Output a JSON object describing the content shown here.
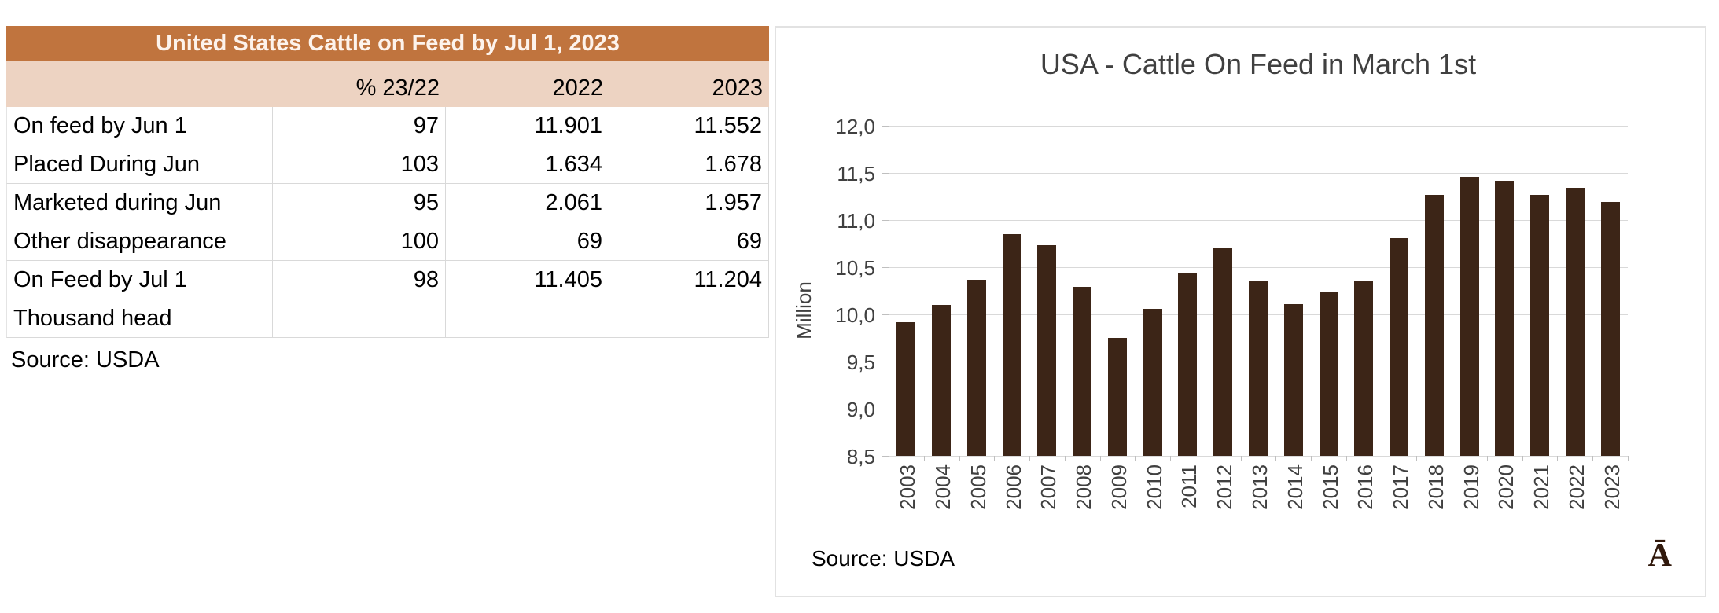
{
  "table": {
    "title": "United States Cattle on Feed by Jul 1, 2023",
    "columns": [
      "",
      "% 23/22",
      "2022",
      "2023"
    ],
    "rows": [
      {
        "label": "On feed by Jun 1",
        "pct": "97",
        "y2022": "11.901",
        "y2023": "11.552"
      },
      {
        "label": "Placed During Jun",
        "pct": "103",
        "y2022": "1.634",
        "y2023": "1.678"
      },
      {
        "label": "Marketed during Jun",
        "pct": "95",
        "y2022": "2.061",
        "y2023": "1.957"
      },
      {
        "label": "Other disappearance",
        "pct": "100",
        "y2022": "69",
        "y2023": "69"
      },
      {
        "label": "On Feed by Jul 1",
        "pct": "98",
        "y2022": "11.405",
        "y2023": "11.204"
      },
      {
        "label": "Thousand head",
        "pct": "",
        "y2022": "",
        "y2023": ""
      }
    ],
    "source": "Source: USDA",
    "colors": {
      "title_bg": "#c0743e",
      "title_text": "#fdf3ec",
      "header_bg": "#edd3c2",
      "cell_border": "#d9d9d9"
    }
  },
  "chart": {
    "title": "USA - Cattle On Feed in March 1st",
    "source": "Source: USDA",
    "corner_glyph": "Ā",
    "colors": {
      "bar": "#3c2517",
      "grid": "#d9d9d9",
      "axis": "#bfbfbf",
      "text": "#404040"
    }
  },
  "chart_data": {
    "type": "bar",
    "title": "USA - Cattle On Feed in March 1st",
    "xlabel": "",
    "ylabel": "Million",
    "categories": [
      "2003",
      "2004",
      "2005",
      "2006",
      "2007",
      "2008",
      "2009",
      "2010",
      "2011",
      "2012",
      "2013",
      "2014",
      "2015",
      "2016",
      "2017",
      "2018",
      "2019",
      "2020",
      "2021",
      "2022",
      "2023"
    ],
    "values": [
      9.92,
      10.1,
      10.37,
      10.85,
      10.73,
      10.29,
      9.75,
      10.06,
      10.44,
      10.71,
      10.35,
      10.11,
      10.23,
      10.35,
      10.81,
      11.27,
      11.46,
      11.42,
      11.27,
      11.34,
      11.19
    ],
    "ylim": [
      8.5,
      12.0
    ],
    "ytick_step": 0.5,
    "ytick_labels": [
      "8,5",
      "9,0",
      "9,5",
      "10,0",
      "10,5",
      "11,0",
      "11,5",
      "12,0"
    ],
    "decimal_comma": true,
    "grid": true,
    "legend": false,
    "source_note": "Source: USDA"
  }
}
